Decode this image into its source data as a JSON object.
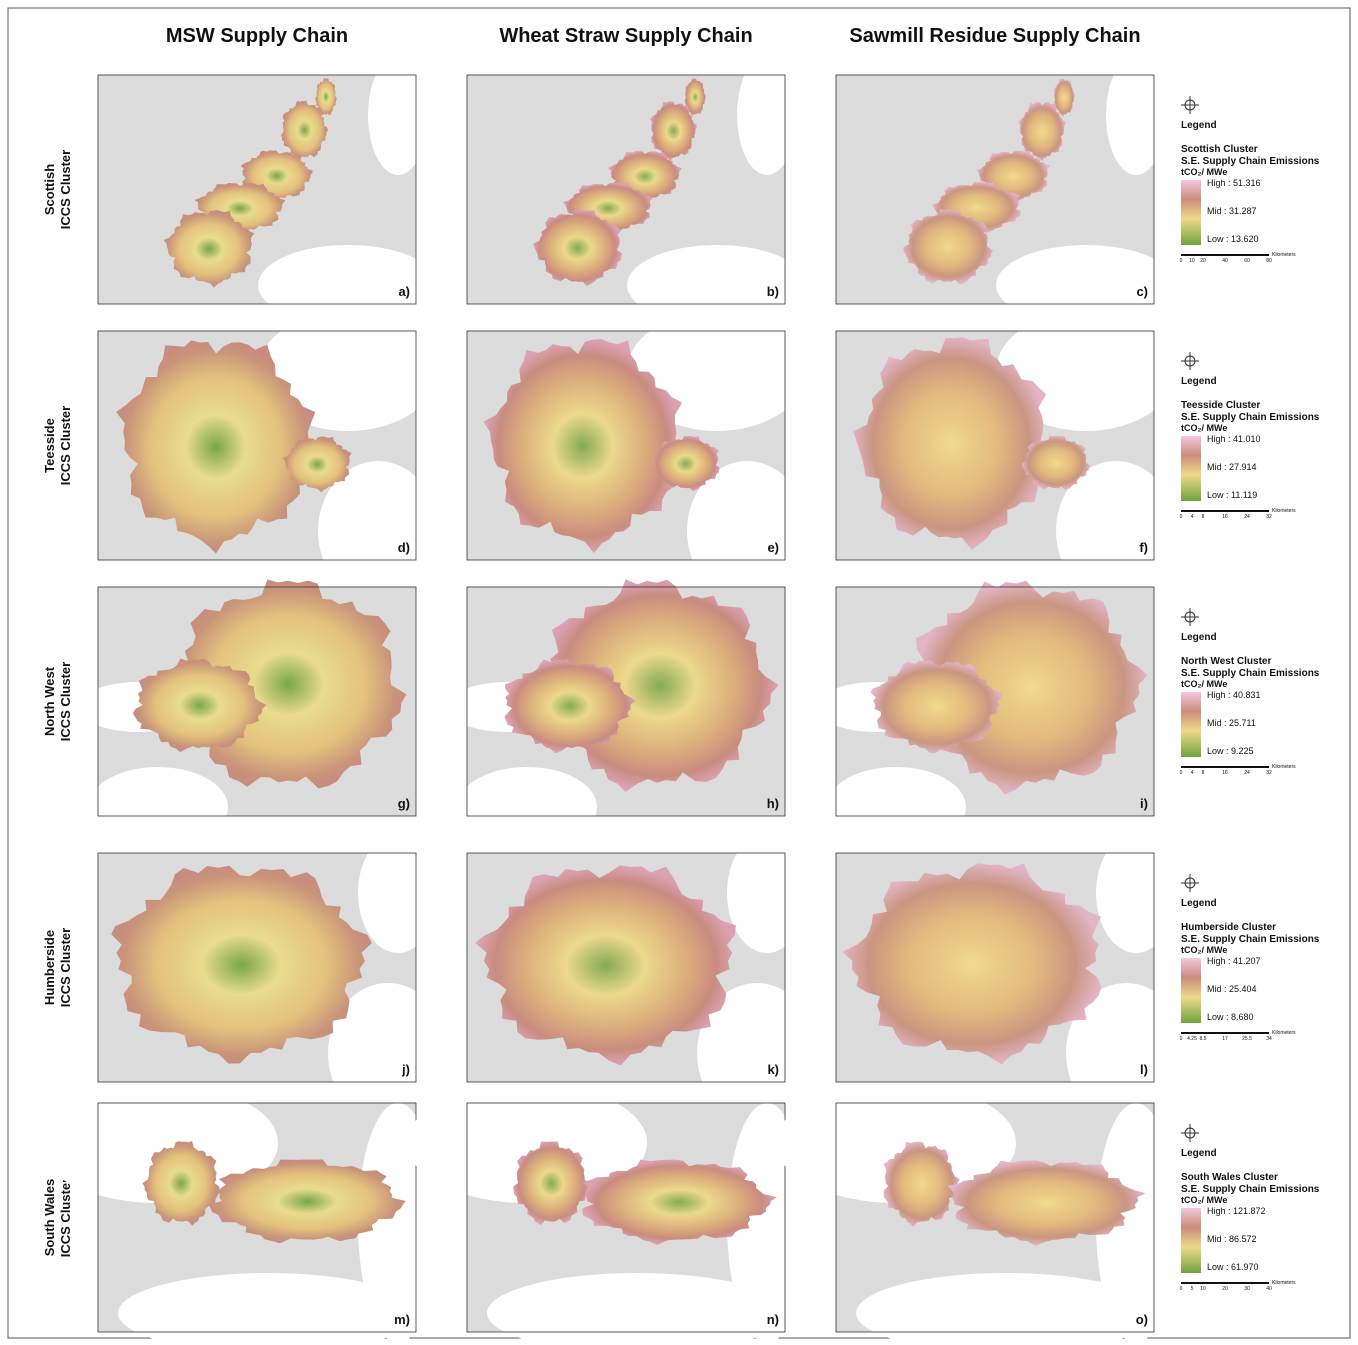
{
  "column_titles": [
    "MSW Supply Chain",
    "Wheat Straw Supply Chain",
    "Sawmill Residue Supply Chain"
  ],
  "rows": [
    {
      "label": [
        "Scottish",
        "ICCS Cluster"
      ],
      "panels": [
        "a)",
        "b)",
        "c)"
      ],
      "legend": {
        "title": "Legend",
        "cluster": "Scottish Cluster",
        "measure": "S.E. Supply Chain Emissions",
        "unit": "tCO₂/ MWe",
        "high": "High : 51.316",
        "mid": "Mid : 31.287",
        "low": "Low : 13.620",
        "scale": [
          "0",
          "10",
          "20",
          "40",
          "60",
          "80"
        ],
        "scale_unit": "Kilometers"
      }
    },
    {
      "label": [
        "Teesside",
        "ICCS Cluster"
      ],
      "panels": [
        "d)",
        "e)",
        "f)"
      ],
      "legend": {
        "title": "Legend",
        "cluster": "Teesside Cluster",
        "measure": "S.E. Supply Chain Emissions",
        "unit": "tCO₂/ MWe",
        "high": "High : 41.010",
        "mid": "Mid : 27.914",
        "low": "Low : 11.119",
        "scale": [
          "0",
          "4",
          "8",
          "16",
          "24",
          "32"
        ],
        "scale_unit": "Kilometers"
      }
    },
    {
      "label": [
        "North West",
        "ICCS Cluster"
      ],
      "panels": [
        "g)",
        "h)",
        "i)"
      ],
      "legend": {
        "title": "Legend",
        "cluster": "North West Cluster",
        "measure": "S.E. Supply Chain Emissions",
        "unit": "tCO₂/ MWe",
        "high": "High : 40.831",
        "mid": "Mid : 25.711",
        "low": "Low : 9.225",
        "scale": [
          "0",
          "4",
          "8",
          "16",
          "24",
          "32"
        ],
        "scale_unit": "Kilometers"
      }
    },
    {
      "label": [
        "Humberside",
        "ICCS Cluster"
      ],
      "panels": [
        "j)",
        "k)",
        "l)"
      ],
      "legend": {
        "title": "Legend",
        "cluster": "Humberside Cluster",
        "measure": "S.E. Supply Chain Emissions",
        "unit": "tCO₂/ MWe",
        "high": "High : 41.207",
        "mid": "Mid : 25.404",
        "low": "Low : 8.680",
        "scale": [
          "0",
          "4.25",
          "8.5",
          "17",
          "25.5",
          "34"
        ],
        "scale_unit": "Kilometers"
      }
    },
    {
      "label": [
        "South Wales",
        "ICCS Cluster"
      ],
      "panels": [
        "m)",
        "n)",
        "o)"
      ],
      "legend": {
        "title": "Legend",
        "cluster": "South Wales Cluster",
        "measure": "S.E. Supply Chain Emissions",
        "unit": "tCO₂/ MWe",
        "high": "High : 121.872",
        "mid": "Mid : 86.572",
        "low": "Low : 61.970",
        "scale": [
          "0",
          "5",
          "10",
          "20",
          "30",
          "40"
        ],
        "scale_unit": "Kilometers"
      }
    }
  ]
}
